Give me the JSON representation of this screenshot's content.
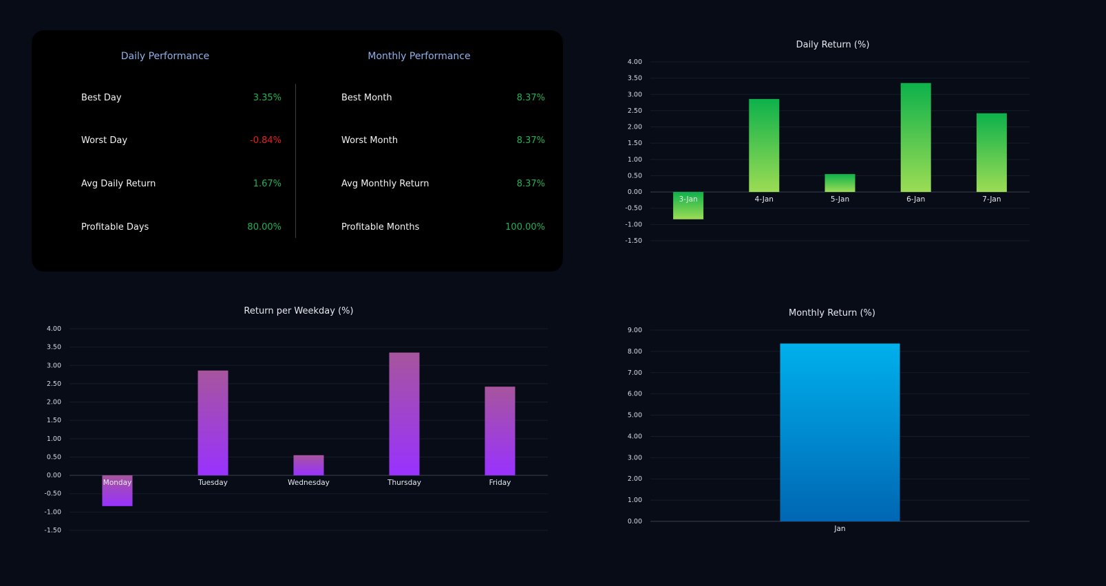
{
  "stats": {
    "daily": {
      "title": "Daily Performance",
      "rows": [
        {
          "label": "Best Day",
          "value": "3.35%",
          "tone": "pos"
        },
        {
          "label": "Worst Day",
          "value": "-0.84%",
          "tone": "neg"
        },
        {
          "label": "Avg Daily Return",
          "value": "1.67%",
          "tone": "pos"
        },
        {
          "label": "Profitable Days",
          "value": "80.00%",
          "tone": "pos"
        }
      ]
    },
    "monthly": {
      "title": "Monthly Performance",
      "rows": [
        {
          "label": "Best Month",
          "value": "8.37%",
          "tone": "pos"
        },
        {
          "label": "Worst Month",
          "value": "8.37%",
          "tone": "pos"
        },
        {
          "label": "Avg Monthly Return",
          "value": "8.37%",
          "tone": "pos"
        },
        {
          "label": "Profitable Months",
          "value": "100.00%",
          "tone": "pos"
        }
      ]
    }
  },
  "colors": {
    "positive": "#1fb257",
    "negative": "#e5201f",
    "panel_title": "#8fb2ea",
    "green_top": "#0db14b",
    "green_bottom": "#9cdc54",
    "purple_top": "#a6559d",
    "purple_bottom": "#9932ff",
    "blue_top": "#00b0ec",
    "blue_bottom": "#0066b3"
  },
  "chart_data": [
    {
      "id": "daily-return",
      "type": "bar",
      "title": "Daily Return (%)",
      "xlabel": "",
      "ylabel": "",
      "categories": [
        "3-Jan",
        "4-Jan",
        "5-Jan",
        "6-Jan",
        "7-Jan"
      ],
      "values": [
        -0.84,
        2.86,
        0.55,
        3.35,
        2.42
      ],
      "ylim": [
        -1.5,
        4.0
      ],
      "yticks": [
        "4.00",
        "3.50",
        "3.00",
        "2.50",
        "2.00",
        "1.50",
        "1.00",
        "0.50",
        "0.00",
        "-0.50",
        "-1.00",
        "-1.50"
      ],
      "grid": true,
      "color_scheme": "green"
    },
    {
      "id": "weekday-return",
      "type": "bar",
      "title": "Return per Weekday (%)",
      "xlabel": "",
      "ylabel": "",
      "categories": [
        "Monday",
        "Tuesday",
        "Wednesday",
        "Thursday",
        "Friday"
      ],
      "values": [
        -0.84,
        2.86,
        0.55,
        3.35,
        2.42
      ],
      "ylim": [
        -1.5,
        4.0
      ],
      "yticks": [
        "4.00",
        "3.50",
        "3.00",
        "2.50",
        "2.00",
        "1.50",
        "1.00",
        "0.50",
        "0.00",
        "-0.50",
        "-1.00",
        "-1.50"
      ],
      "grid": true,
      "color_scheme": "purple"
    },
    {
      "id": "monthly-return",
      "type": "bar",
      "title": "Monthly Return (%)",
      "xlabel": "",
      "ylabel": "",
      "categories": [
        "Jan"
      ],
      "values": [
        8.37
      ],
      "ylim": [
        0,
        9.0
      ],
      "yticks": [
        "9.00",
        "8.00",
        "7.00",
        "6.00",
        "5.00",
        "4.00",
        "3.00",
        "2.00",
        "1.00",
        "0.00"
      ],
      "grid": true,
      "color_scheme": "blue"
    }
  ]
}
